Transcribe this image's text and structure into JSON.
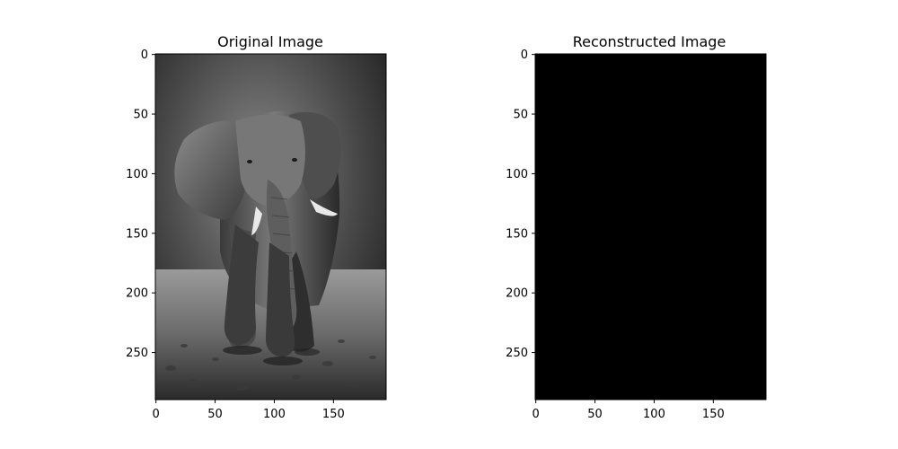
{
  "panels": [
    {
      "id": "original",
      "title": "Original Image",
      "content": "grayscale elephant photo",
      "x_ticks": [
        "0",
        "50",
        "100",
        "150"
      ],
      "y_ticks": [
        "0",
        "50",
        "100",
        "150",
        "200",
        "250"
      ],
      "x_tick_values": [
        0,
        50,
        100,
        150
      ],
      "y_tick_values": [
        0,
        50,
        100,
        150,
        200,
        250
      ],
      "image_width": 195,
      "image_height": 290
    },
    {
      "id": "reconstructed",
      "title": "Reconstructed Image",
      "fill_color": "#000000",
      "x_ticks": [
        "0",
        "50",
        "100",
        "150"
      ],
      "y_ticks": [
        "0",
        "50",
        "100",
        "150",
        "200",
        "250"
      ],
      "x_tick_values": [
        0,
        50,
        100,
        150
      ],
      "y_tick_values": [
        0,
        50,
        100,
        150,
        200,
        250
      ],
      "image_width": 195,
      "image_height": 290
    }
  ]
}
